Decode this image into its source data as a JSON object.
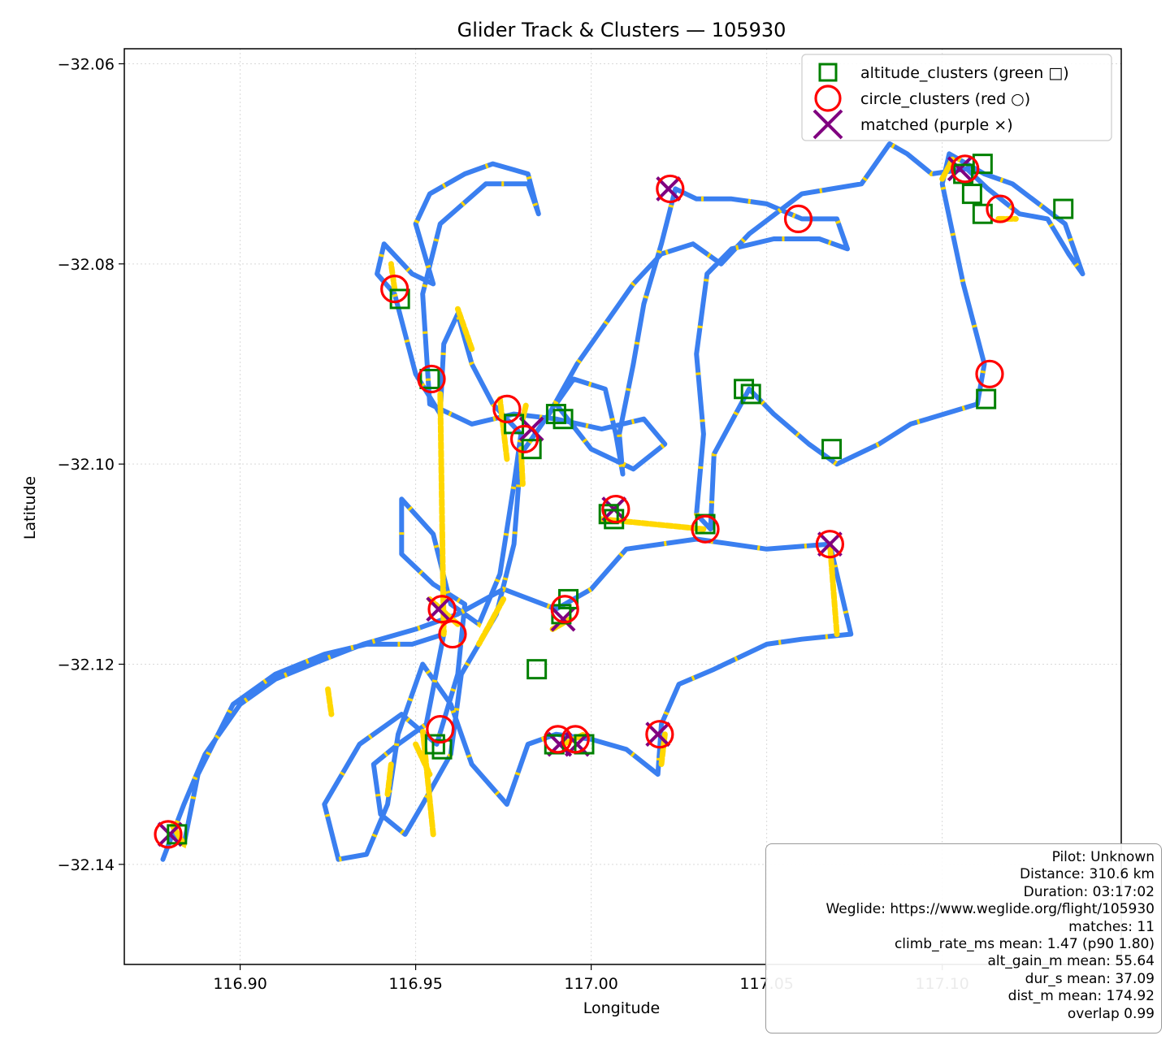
{
  "chart_data": {
    "type": "scatter",
    "title": "Glider Track & Clusters — 105930",
    "xlabel": "Longitude",
    "ylabel": "Latitude",
    "xlim": [
      116.867,
      117.151
    ],
    "ylim": [
      -32.15,
      -32.0585
    ],
    "xticks": [
      116.9,
      116.95,
      117.0,
      117.05,
      117.1
    ],
    "xtick_labels": [
      "116.90",
      "116.95",
      "117.00",
      "117.05",
      "117.10"
    ],
    "yticks": [
      -32.06,
      -32.08,
      -32.1,
      -32.12,
      -32.14
    ],
    "ytick_labels": [
      "−32.06",
      "−32.08",
      "−32.10",
      "−32.12",
      "−32.14"
    ],
    "grid": true,
    "legend_position": "upper right",
    "track_colors": {
      "cruise": "#3a7ff0",
      "climb": "#ffd700"
    },
    "legend": [
      {
        "label": "altitude_clusters (green □)",
        "marker": "square",
        "color": "#008000"
      },
      {
        "label": "circle_clusters (red ○)",
        "marker": "circle",
        "color": "#ff0000"
      },
      {
        "label": "matched (purple ×)",
        "marker": "x",
        "color": "#800080"
      }
    ],
    "track": [
      [
        116.878,
        -32.1395
      ],
      [
        116.884,
        -32.134
      ],
      [
        116.89,
        -32.129
      ],
      [
        116.9,
        -32.124
      ],
      [
        116.91,
        -32.1215
      ],
      [
        116.924,
        -32.1195
      ],
      [
        116.935,
        -32.118
      ],
      [
        116.95,
        -32.1165
      ],
      [
        116.962,
        -32.115
      ],
      [
        116.975,
        -32.1125
      ],
      [
        116.99,
        -32.1145
      ],
      [
        117.0,
        -32.1125
      ],
      [
        117.01,
        -32.1085
      ],
      [
        117.03,
        -32.1075
      ],
      [
        117.05,
        -32.1085
      ],
      [
        117.068,
        -32.108
      ],
      [
        117.074,
        -32.117
      ],
      [
        117.06,
        -32.1175
      ],
      [
        117.05,
        -32.118
      ],
      [
        117.035,
        -32.1205
      ],
      [
        117.025,
        -32.122
      ],
      [
        117.02,
        -32.126
      ],
      [
        117.019,
        -32.131
      ],
      [
        117.01,
        -32.1285
      ],
      [
        117.0,
        -32.1275
      ],
      [
        116.99,
        -32.127
      ],
      [
        116.982,
        -32.128
      ],
      [
        116.976,
        -32.134
      ],
      [
        116.966,
        -32.13
      ],
      [
        116.96,
        -32.124
      ],
      [
        116.952,
        -32.12
      ],
      [
        116.945,
        -32.127
      ],
      [
        116.942,
        -32.134
      ],
      [
        116.936,
        -32.139
      ],
      [
        116.928,
        -32.1395
      ],
      [
        116.924,
        -32.134
      ],
      [
        116.934,
        -32.128
      ],
      [
        116.946,
        -32.125
      ],
      [
        116.956,
        -32.128
      ],
      [
        116.962,
        -32.121
      ],
      [
        116.964,
        -32.114
      ],
      [
        116.955,
        -32.112
      ],
      [
        116.946,
        -32.109
      ],
      [
        116.946,
        -32.1035
      ],
      [
        116.955,
        -32.107
      ],
      [
        116.96,
        -32.114
      ],
      [
        116.968,
        -32.116
      ],
      [
        116.974,
        -32.111
      ],
      [
        116.978,
        -32.102
      ],
      [
        116.98,
        -32.097
      ],
      [
        116.972,
        -32.094
      ],
      [
        116.966,
        -32.09
      ],
      [
        116.962,
        -32.085
      ],
      [
        116.958,
        -32.088
      ],
      [
        116.957,
        -32.095
      ],
      [
        116.95,
        -32.091
      ],
      [
        116.944,
        -32.083
      ],
      [
        116.939,
        -32.081
      ],
      [
        116.941,
        -32.078
      ],
      [
        116.949,
        -32.081
      ],
      [
        116.955,
        -32.082
      ],
      [
        116.95,
        -32.076
      ],
      [
        116.954,
        -32.073
      ],
      [
        116.964,
        -32.071
      ],
      [
        116.972,
        -32.07
      ],
      [
        116.982,
        -32.071
      ],
      [
        116.985,
        -32.075
      ],
      [
        116.982,
        -32.072
      ],
      [
        116.97,
        -32.072
      ],
      [
        116.957,
        -32.076
      ],
      [
        116.952,
        -32.083
      ],
      [
        116.954,
        -32.094
      ],
      [
        116.966,
        -32.096
      ],
      [
        116.978,
        -32.095
      ],
      [
        116.99,
        -32.0955
      ],
      [
        117.003,
        -32.0965
      ],
      [
        117.015,
        -32.0955
      ],
      [
        117.021,
        -32.098
      ],
      [
        117.012,
        -32.1005
      ],
      [
        117.0,
        -32.0985
      ],
      [
        116.99,
        -32.094
      ],
      [
        116.995,
        -32.0915
      ],
      [
        117.004,
        -32.0925
      ],
      [
        117.007,
        -32.097
      ],
      [
        117.009,
        -32.101
      ],
      [
        117.008,
        -32.097
      ],
      [
        117.012,
        -32.09
      ],
      [
        117.015,
        -32.084
      ],
      [
        117.02,
        -32.078
      ],
      [
        117.024,
        -32.0725
      ],
      [
        117.03,
        -32.0735
      ],
      [
        117.04,
        -32.0735
      ],
      [
        117.05,
        -32.074
      ],
      [
        117.06,
        -32.0755
      ],
      [
        117.07,
        -32.0755
      ],
      [
        117.073,
        -32.0785
      ],
      [
        117.065,
        -32.0775
      ],
      [
        117.052,
        -32.0775
      ],
      [
        117.04,
        -32.0785
      ],
      [
        117.033,
        -32.081
      ],
      [
        117.03,
        -32.089
      ],
      [
        117.032,
        -32.097
      ],
      [
        117.03,
        -32.105
      ],
      [
        117.034,
        -32.1065
      ],
      [
        117.035,
        -32.099
      ],
      [
        117.045,
        -32.0925
      ],
      [
        117.052,
        -32.095
      ],
      [
        117.062,
        -32.098
      ],
      [
        117.07,
        -32.1
      ],
      [
        117.082,
        -32.098
      ],
      [
        117.091,
        -32.096
      ],
      [
        117.11,
        -32.094
      ],
      [
        117.112,
        -32.09
      ],
      [
        117.106,
        -32.082
      ],
      [
        117.1,
        -32.072
      ],
      [
        117.102,
        -32.069
      ],
      [
        117.112,
        -32.071
      ],
      [
        117.12,
        -32.072
      ],
      [
        117.135,
        -32.076
      ],
      [
        117.14,
        -32.081
      ],
      [
        117.136,
        -32.079
      ],
      [
        117.13,
        -32.0755
      ],
      [
        117.122,
        -32.075
      ],
      [
        117.113,
        -32.0725
      ],
      [
        117.107,
        -32.0705
      ],
      [
        117.097,
        -32.071
      ],
      [
        117.09,
        -32.069
      ],
      [
        117.085,
        -32.068
      ],
      [
        117.077,
        -32.072
      ],
      [
        117.06,
        -32.073
      ],
      [
        117.045,
        -32.077
      ],
      [
        117.037,
        -32.08
      ],
      [
        117.029,
        -32.078
      ],
      [
        117.02,
        -32.079
      ],
      [
        117.012,
        -32.082
      ],
      [
        117.004,
        -32.086
      ],
      [
        116.996,
        -32.09
      ],
      [
        116.988,
        -32.095
      ],
      [
        116.98,
        -32.099
      ],
      [
        116.978,
        -32.108
      ],
      [
        116.973,
        -32.115
      ],
      [
        116.963,
        -32.121
      ],
      [
        116.96,
        -32.129
      ],
      [
        116.952,
        -32.134
      ],
      [
        116.947,
        -32.137
      ],
      [
        116.94,
        -32.135
      ],
      [
        116.938,
        -32.13
      ],
      [
        116.945,
        -32.128
      ],
      [
        116.953,
        -32.126
      ],
      [
        116.958,
        -32.117
      ],
      [
        116.949,
        -32.118
      ],
      [
        116.936,
        -32.118
      ],
      [
        116.924,
        -32.119
      ],
      [
        116.91,
        -32.121
      ],
      [
        116.898,
        -32.124
      ],
      [
        116.888,
        -32.131
      ],
      [
        116.884,
        -32.138
      ],
      [
        116.88,
        -32.137
      ]
    ],
    "climb_segments": [
      [
        116.976,
        -32.0995
      ],
      [
        116.974,
        -32.0935
      ],
      [
        116.966,
        -32.0885
      ],
      [
        116.962,
        -32.0845
      ],
      [
        116.957,
        -32.093
      ],
      [
        116.958,
        -32.117
      ],
      [
        116.962,
        -32.116
      ],
      [
        116.954,
        -32.1135
      ],
      [
        116.95,
        -32.128
      ],
      [
        116.954,
        -32.131
      ],
      [
        116.955,
        -32.137
      ],
      [
        116.952,
        -32.1265
      ],
      [
        116.944,
        -32.0825
      ],
      [
        116.943,
        -32.08
      ],
      [
        116.98,
        -32.0985
      ],
      [
        116.9805,
        -32.102
      ],
      [
        116.992,
        -32.128
      ],
      [
        116.998,
        -32.127
      ],
      [
        116.9805,
        -32.0955
      ],
      [
        116.9815,
        -32.094
      ],
      [
        117.1,
        -32.0715
      ],
      [
        117.103,
        -32.0695
      ],
      [
        117.116,
        -32.0755
      ],
      [
        117.121,
        -32.0755
      ],
      [
        117.003,
        -32.1055
      ],
      [
        117.032,
        -32.1065
      ],
      [
        117.068,
        -32.108
      ],
      [
        117.07,
        -32.117
      ],
      [
        117.021,
        -32.127
      ],
      [
        117.02,
        -32.13
      ],
      [
        116.884,
        -32.138
      ],
      [
        116.8805,
        -32.136
      ],
      [
        116.994,
        -32.1155
      ],
      [
        116.989,
        -32.1165
      ],
      [
        116.942,
        -32.133
      ],
      [
        116.943,
        -32.13
      ],
      [
        116.925,
        -32.1225
      ],
      [
        116.926,
        -32.125
      ],
      [
        116.975,
        -32.1135
      ],
      [
        116.968,
        -32.118
      ]
    ],
    "altitude_clusters": [
      [
        116.9455,
        -32.0835
      ],
      [
        116.954,
        -32.0915
      ],
      [
        116.983,
        -32.0985
      ],
      [
        116.978,
        -32.096
      ],
      [
        116.992,
        -32.0955
      ],
      [
        116.99,
        -32.095
      ],
      [
        117.005,
        -32.105
      ],
      [
        117.0065,
        -32.1055
      ],
      [
        117.0325,
        -32.106
      ],
      [
        117.0435,
        -32.0925
      ],
      [
        117.0455,
        -32.093
      ],
      [
        117.0685,
        -32.0985
      ],
      [
        117.106,
        -32.071
      ],
      [
        117.1115,
        -32.07
      ],
      [
        117.1085,
        -32.073
      ],
      [
        117.1115,
        -32.075
      ],
      [
        117.1345,
        -32.0745
      ],
      [
        117.1125,
        -32.0935
      ],
      [
        116.9935,
        -32.1135
      ],
      [
        116.9915,
        -32.115
      ],
      [
        116.9845,
        -32.1205
      ],
      [
        116.9895,
        -32.128
      ],
      [
        116.998,
        -32.128
      ],
      [
        116.9555,
        -32.128
      ],
      [
        116.9575,
        -32.1285
      ],
      [
        116.882,
        -32.137
      ]
    ],
    "circle_clusters": [
      [
        116.944,
        -32.0825
      ],
      [
        116.9545,
        -32.0915
      ],
      [
        116.976,
        -32.0945
      ],
      [
        116.981,
        -32.0975
      ],
      [
        117.0225,
        -32.0725
      ],
      [
        117.059,
        -32.0755
      ],
      [
        117.1065,
        -32.0705
      ],
      [
        117.1165,
        -32.0745
      ],
      [
        117.1135,
        -32.091
      ],
      [
        117.007,
        -32.1045
      ],
      [
        117.0325,
        -32.1065
      ],
      [
        117.068,
        -32.108
      ],
      [
        116.9575,
        -32.1145
      ],
      [
        116.9605,
        -32.117
      ],
      [
        116.9925,
        -32.1145
      ],
      [
        117.0195,
        -32.127
      ],
      [
        116.9905,
        -32.1275
      ],
      [
        116.9955,
        -32.1275
      ],
      [
        116.957,
        -32.1265
      ],
      [
        116.8795,
        -32.137
      ]
    ],
    "matched": [
      [
        117.022,
        -32.0725
      ],
      [
        116.983,
        -32.0965
      ],
      [
        117.0065,
        -32.1045
      ],
      [
        117.068,
        -32.108
      ],
      [
        117.105,
        -32.0705
      ],
      [
        116.9565,
        -32.1145
      ],
      [
        117.019,
        -32.127
      ],
      [
        116.991,
        -32.128
      ],
      [
        116.996,
        -32.128
      ],
      [
        116.992,
        -32.1155
      ],
      [
        116.88,
        -32.137
      ]
    ]
  },
  "stats_box": [
    "Pilot: Unknown",
    "Distance: 310.6 km",
    "Duration: 03:17:02",
    "Weglide: https://www.weglide.org/flight/105930",
    "matches: 11",
    "climb_rate_ms mean: 1.47 (p90 1.80)",
    "alt_gain_m mean: 55.64",
    "dur_s mean: 37.09",
    "dist_m mean: 174.92",
    "overlap 0.99"
  ]
}
